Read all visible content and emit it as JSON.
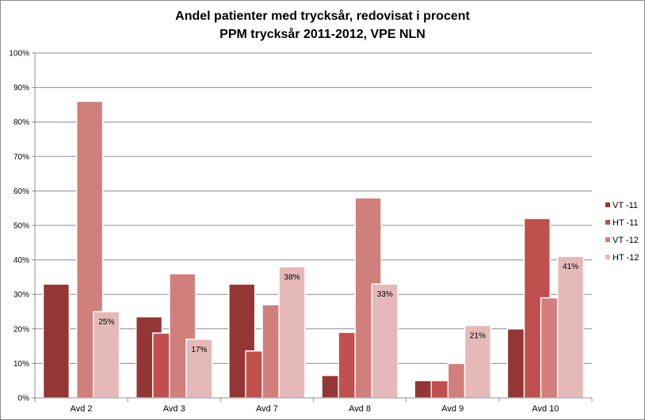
{
  "chart_data": {
    "type": "bar",
    "title_line1": "Andel patienter med trycksår, redovisat i procent",
    "title_line2": "PPM trycksår 2011-2012, VPE NLN",
    "categories": [
      "Avd 2",
      "Avd 3",
      "Avd 7",
      "Avd 8",
      "Avd 9",
      "Avd 10"
    ],
    "series": [
      {
        "name": "VT -11",
        "color": "#943634",
        "values": [
          33,
          23.5,
          33,
          6.5,
          5,
          20
        ]
      },
      {
        "name": "HT -11",
        "color": "#C0504D",
        "values": [
          null,
          18.8,
          13.6,
          19,
          5,
          52
        ]
      },
      {
        "name": "VT -12",
        "color": "#D07F7D",
        "values": [
          86,
          36,
          27,
          58,
          10,
          29
        ]
      },
      {
        "name": "HT -12",
        "color": "#E5B9B8",
        "values": [
          25,
          17,
          38,
          33,
          21,
          41
        ]
      }
    ],
    "data_labels": [
      {
        "series": 3,
        "category": 0,
        "text": "25%"
      },
      {
        "series": 3,
        "category": 1,
        "text": "17%"
      },
      {
        "series": 3,
        "category": 2,
        "text": "38%"
      },
      {
        "series": 3,
        "category": 3,
        "text": "33%"
      },
      {
        "series": 3,
        "category": 4,
        "text": "21%"
      },
      {
        "series": 3,
        "category": 5,
        "text": "41%"
      }
    ],
    "yticks": [
      "0%",
      "10%",
      "20%",
      "30%",
      "40%",
      "50%",
      "60%",
      "70%",
      "80%",
      "90%",
      "100%"
    ],
    "ylim": [
      0,
      100
    ],
    "xlabel": "",
    "ylabel": "",
    "grid": true,
    "legend_position": "right"
  }
}
